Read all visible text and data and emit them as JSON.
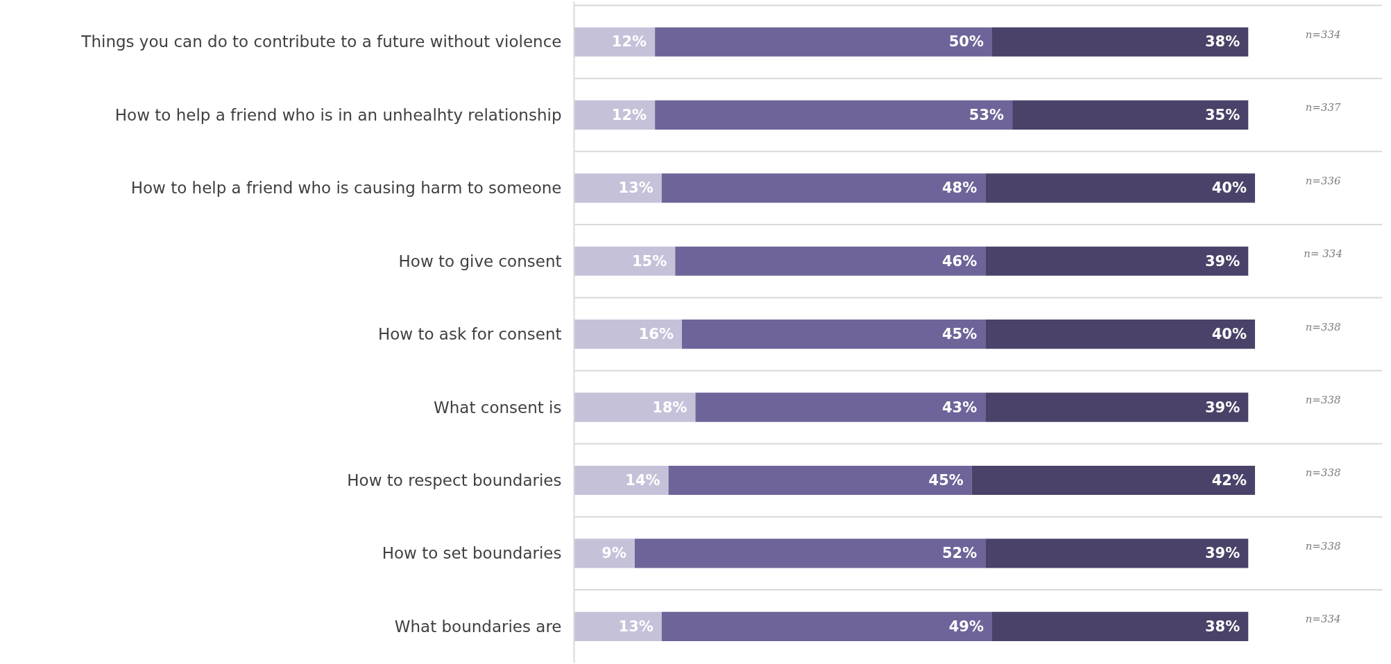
{
  "chart_data": {
    "type": "bar",
    "orientation": "horizontal",
    "stacked": true,
    "tick_labels": "y",
    "grid": "y",
    "categories": [
      "Things you can do to contribute to a future without violence",
      "How to help a friend who is in an unhealhty relationship",
      "How to help a friend who is causing harm to someone",
      "How to give consent",
      "How to ask for consent",
      "What consent is",
      "How to respect boundaries",
      "How to set boundaries",
      "What boundaries are"
    ],
    "series": [
      {
        "color": "#c5c1d9",
        "values": [
          12,
          12,
          13,
          15,
          16,
          18,
          14,
          9,
          13
        ],
        "value_labels": [
          "12%",
          "12%",
          "13%",
          "15%",
          "16%",
          "18%",
          "14%",
          "9%",
          "13%"
        ]
      },
      {
        "color": "#6e6499",
        "values": [
          50,
          53,
          48,
          46,
          45,
          43,
          45,
          52,
          49
        ],
        "value_labels": [
          "50%",
          "53%",
          "48%",
          "46%",
          "45%",
          "43%",
          "45%",
          "52%",
          "49%"
        ]
      },
      {
        "color": "#4a4268",
        "values": [
          38,
          35,
          40,
          39,
          40,
          39,
          42,
          39,
          38
        ],
        "value_labels": [
          "38%",
          "35%",
          "40%",
          "39%",
          "40%",
          "39%",
          "42%",
          "39%",
          "38%"
        ]
      }
    ],
    "annotations": [
      "n=334",
      "n=337",
      "n=336",
      "n= 334",
      "n=338",
      "n=338",
      "n=338",
      "n=338",
      "n=334"
    ]
  }
}
